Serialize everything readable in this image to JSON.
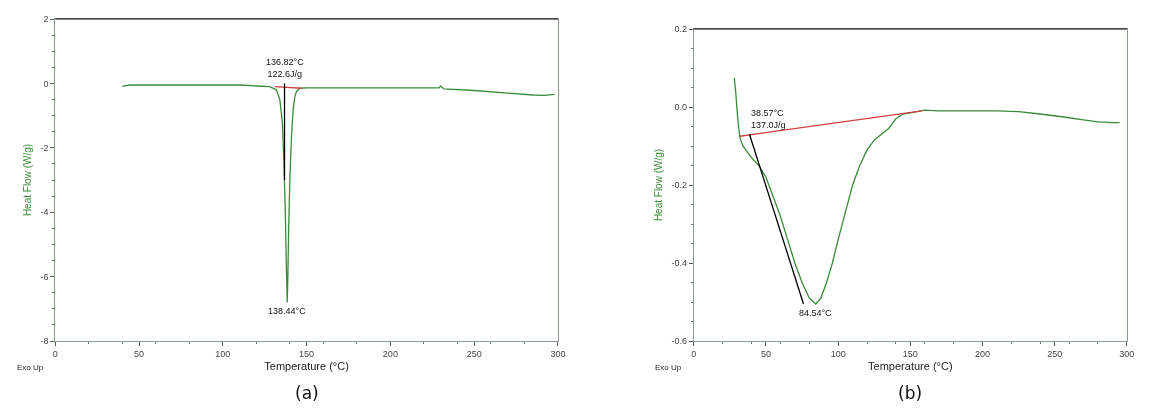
{
  "chart_data": [
    {
      "type": "line",
      "xlabel": "Temperature (°C)",
      "ylabel": "Heat Flow (W/g)",
      "xlim": [
        0,
        300
      ],
      "ylim": [
        -8,
        2
      ],
      "xticks": [
        0,
        50,
        100,
        150,
        200,
        250,
        300
      ],
      "yticks": [
        -8,
        -6,
        -4,
        -2,
        0,
        2
      ],
      "marker": "none",
      "line_style": "solid",
      "series": [
        {
          "color": "#3a8a3a",
          "x": [
            40,
            42,
            45,
            60,
            80,
            100,
            110,
            120,
            128,
            132,
            134,
            135.5,
            136.5,
            137.3,
            137.8,
            138.2,
            138.44,
            138.8,
            139.3,
            140,
            141,
            142,
            143,
            144,
            146,
            150,
            170,
            200,
            229,
            230,
            232,
            250,
            270,
            285,
            292,
            298
          ],
          "values": [
            -0.1,
            -0.07,
            -0.05,
            -0.05,
            -0.05,
            -0.05,
            -0.05,
            -0.08,
            -0.1,
            -0.2,
            -0.5,
            -1.2,
            -2.5,
            -4.0,
            -5.4,
            -6.3,
            -6.8,
            -6.0,
            -4.5,
            -3.0,
            -1.6,
            -0.8,
            -0.4,
            -0.25,
            -0.15,
            -0.14,
            -0.14,
            -0.14,
            -0.14,
            -0.08,
            -0.17,
            -0.22,
            -0.3,
            -0.36,
            -0.37,
            -0.34
          ]
        },
        {
          "color": "#d04040",
          "x": [
            131,
            147
          ],
          "values": [
            -0.1,
            -0.15
          ]
        },
        {
          "color": "#000000",
          "x": [
            136.82,
            136.82
          ],
          "values": [
            0.0,
            -3.0
          ]
        }
      ],
      "annotations": [
        {
          "text": "136.82°C\n122.6J/g",
          "x": 136.82,
          "y": 0.0
        },
        {
          "text": "138.44°C",
          "x": 138.44,
          "y": -6.8
        },
        "Exo Up",
        "(a)"
      ]
    },
    {
      "type": "line",
      "xlabel": "Temperature (°C)",
      "ylabel": "Heat Flow (W/g)",
      "xlim": [
        0,
        300
      ],
      "ylim": [
        -0.6,
        0.2
      ],
      "xticks": [
        0,
        50,
        100,
        150,
        200,
        250,
        300
      ],
      "yticks": [
        -0.6,
        -0.4,
        -0.2,
        {
          "value": 0,
          "label": "0.0"
        },
        0.2
      ],
      "marker": "none",
      "line_style": "solid",
      "series": [
        {
          "color": "#3a8a3a",
          "x": [
            28,
            29,
            30,
            31,
            32,
            34,
            37,
            40,
            45,
            50,
            55,
            60,
            65,
            70,
            75,
            80,
            84.54,
            88,
            92,
            96,
            100,
            105,
            110,
            115,
            120,
            125,
            130,
            135,
            140,
            145,
            150,
            160,
            170,
            190,
            210,
            225,
            240,
            255,
            270,
            280,
            290,
            295
          ],
          "values": [
            0.075,
            0.04,
            -0.01,
            -0.05,
            -0.08,
            -0.1,
            -0.115,
            -0.13,
            -0.15,
            -0.18,
            -0.23,
            -0.28,
            -0.34,
            -0.4,
            -0.45,
            -0.49,
            -0.505,
            -0.49,
            -0.45,
            -0.4,
            -0.34,
            -0.27,
            -0.2,
            -0.15,
            -0.11,
            -0.085,
            -0.07,
            -0.055,
            -0.03,
            -0.018,
            -0.015,
            -0.008,
            -0.01,
            -0.01,
            -0.01,
            -0.012,
            -0.018,
            -0.025,
            -0.033,
            -0.038,
            -0.04,
            -0.04
          ]
        },
        {
          "color": "#d04040",
          "x": [
            32,
            158
          ],
          "values": [
            -0.075,
            -0.01
          ]
        },
        {
          "color": "#000000",
          "x": [
            38.57,
            76
          ],
          "values": [
            -0.07,
            -0.505
          ]
        }
      ],
      "annotations": [
        {
          "text": "38.57°C\n137.0J/g",
          "x": 38.57,
          "y": -0.07
        },
        {
          "text": "84.54°C",
          "x": 84.54,
          "y": -0.505
        },
        "Exo Up",
        "(b)"
      ]
    }
  ]
}
